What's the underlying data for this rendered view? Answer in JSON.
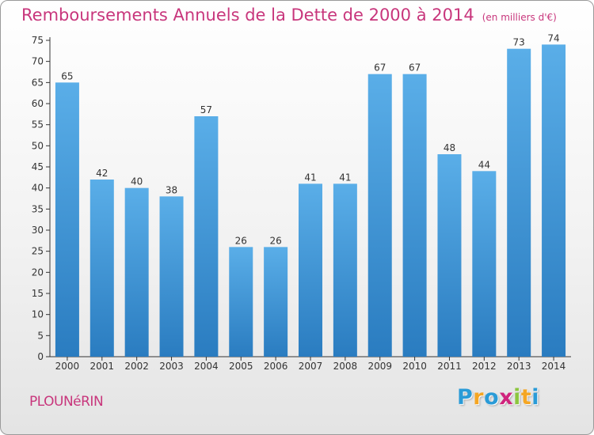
{
  "header": {
    "title": "Remboursements Annuels de la Dette de 2000 à 2014",
    "unit": "(en milliers d'€)"
  },
  "footer": {
    "commune": "PLOUNéRIN",
    "logo_letters": [
      "P",
      "r",
      "o",
      "x",
      "i",
      "t",
      "i"
    ],
    "logo_colors": [
      "#2a9bd7",
      "#f5a623",
      "#2a9bd7",
      "#d0247d",
      "#8cc63f",
      "#f5a623",
      "#2a9bd7"
    ]
  },
  "colors": {
    "bar_top": "#5aaee8",
    "bar_bottom": "#2a7cc0",
    "text": "#333333",
    "accent": "#c8367c"
  },
  "chart_data": {
    "type": "bar",
    "title": "Remboursements Annuels de la Dette de 2000 à 2014",
    "subtitle": "(en milliers d'€)",
    "xlabel": "",
    "ylabel": "",
    "categories": [
      "2000",
      "2001",
      "2002",
      "2003",
      "2004",
      "2005",
      "2006",
      "2007",
      "2008",
      "2009",
      "2010",
      "2011",
      "2012",
      "2013",
      "2014"
    ],
    "values": [
      65,
      42,
      40,
      38,
      57,
      26,
      26,
      41,
      41,
      67,
      67,
      48,
      44,
      73,
      74
    ],
    "ylim": [
      0,
      75
    ],
    "yticks": [
      0,
      5,
      10,
      15,
      20,
      25,
      30,
      35,
      40,
      45,
      50,
      55,
      60,
      65,
      70,
      75
    ],
    "data_labels": true,
    "grid": false,
    "legend": "none"
  }
}
